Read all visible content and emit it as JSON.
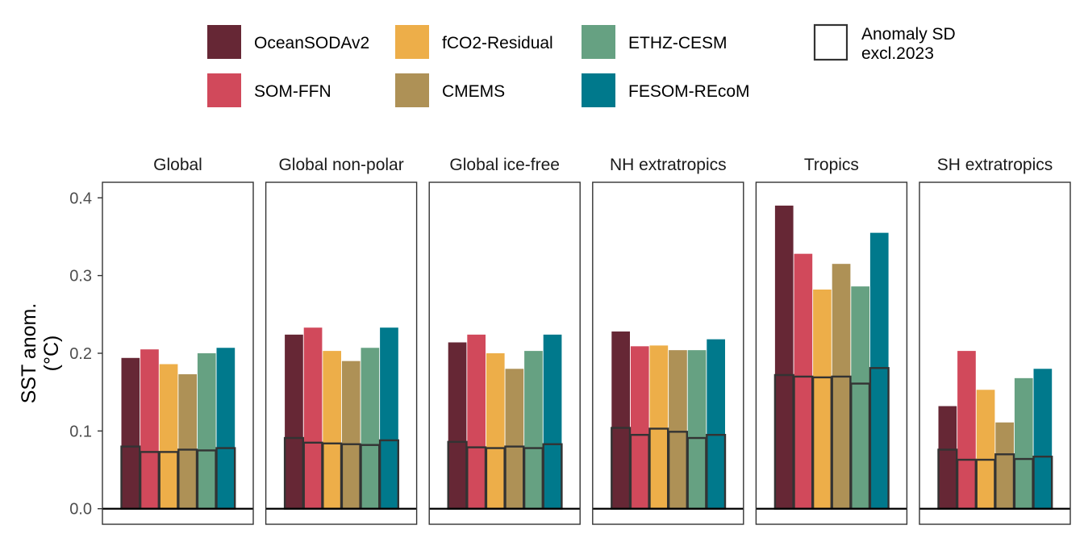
{
  "chart_data": {
    "type": "bar",
    "ylabel_lines": [
      "SST anom.",
      "(°C)"
    ],
    "ylim": [
      -0.02,
      0.42
    ],
    "y_ticks": [
      {
        "value": 0.0,
        "label": "0.0"
      },
      {
        "value": 0.1,
        "label": "0.1"
      },
      {
        "value": 0.2,
        "label": "0.2"
      },
      {
        "value": 0.3,
        "label": "0.3"
      },
      {
        "value": 0.4,
        "label": "0.4"
      }
    ],
    "grid": false,
    "legend_position": "top",
    "series": [
      {
        "name": "OceanSODAv2",
        "color": "#662735"
      },
      {
        "name": "SOM-FFN",
        "color": "#d1495b"
      },
      {
        "name": "fCO2-Residual",
        "color": "#edae49"
      },
      {
        "name": "CMEMS",
        "color": "#ae9156"
      },
      {
        "name": "ETHZ-CESM",
        "color": "#66a182"
      },
      {
        "name": "FESOM-REcoM",
        "color": "#00798c"
      }
    ],
    "anomaly_sd_legend_lines": [
      "Anomaly SD",
      "excl.2023"
    ],
    "panels": [
      {
        "name": "Global",
        "values": [
          0.194,
          0.205,
          0.186,
          0.173,
          0.2,
          0.207
        ],
        "sd": [
          0.08,
          0.073,
          0.073,
          0.076,
          0.075,
          0.078
        ]
      },
      {
        "name": "Global non-polar",
        "values": [
          0.224,
          0.233,
          0.203,
          0.19,
          0.207,
          0.233
        ],
        "sd": [
          0.091,
          0.085,
          0.084,
          0.083,
          0.082,
          0.088
        ]
      },
      {
        "name": "Global ice-free",
        "values": [
          0.214,
          0.224,
          0.2,
          0.18,
          0.203,
          0.224
        ],
        "sd": [
          0.086,
          0.079,
          0.078,
          0.08,
          0.078,
          0.083
        ]
      },
      {
        "name": "NH extratropics",
        "values": [
          0.228,
          0.209,
          0.21,
          0.204,
          0.204,
          0.218
        ],
        "sd": [
          0.104,
          0.095,
          0.103,
          0.099,
          0.091,
          0.095
        ]
      },
      {
        "name": "Tropics",
        "values": [
          0.39,
          0.328,
          0.282,
          0.315,
          0.286,
          0.355
        ],
        "sd": [
          0.172,
          0.17,
          0.169,
          0.17,
          0.161,
          0.181
        ]
      },
      {
        "name": "SH extratropics",
        "values": [
          0.132,
          0.203,
          0.153,
          0.111,
          0.168,
          0.18
        ],
        "sd": [
          0.076,
          0.063,
          0.063,
          0.07,
          0.064,
          0.067
        ]
      }
    ]
  }
}
